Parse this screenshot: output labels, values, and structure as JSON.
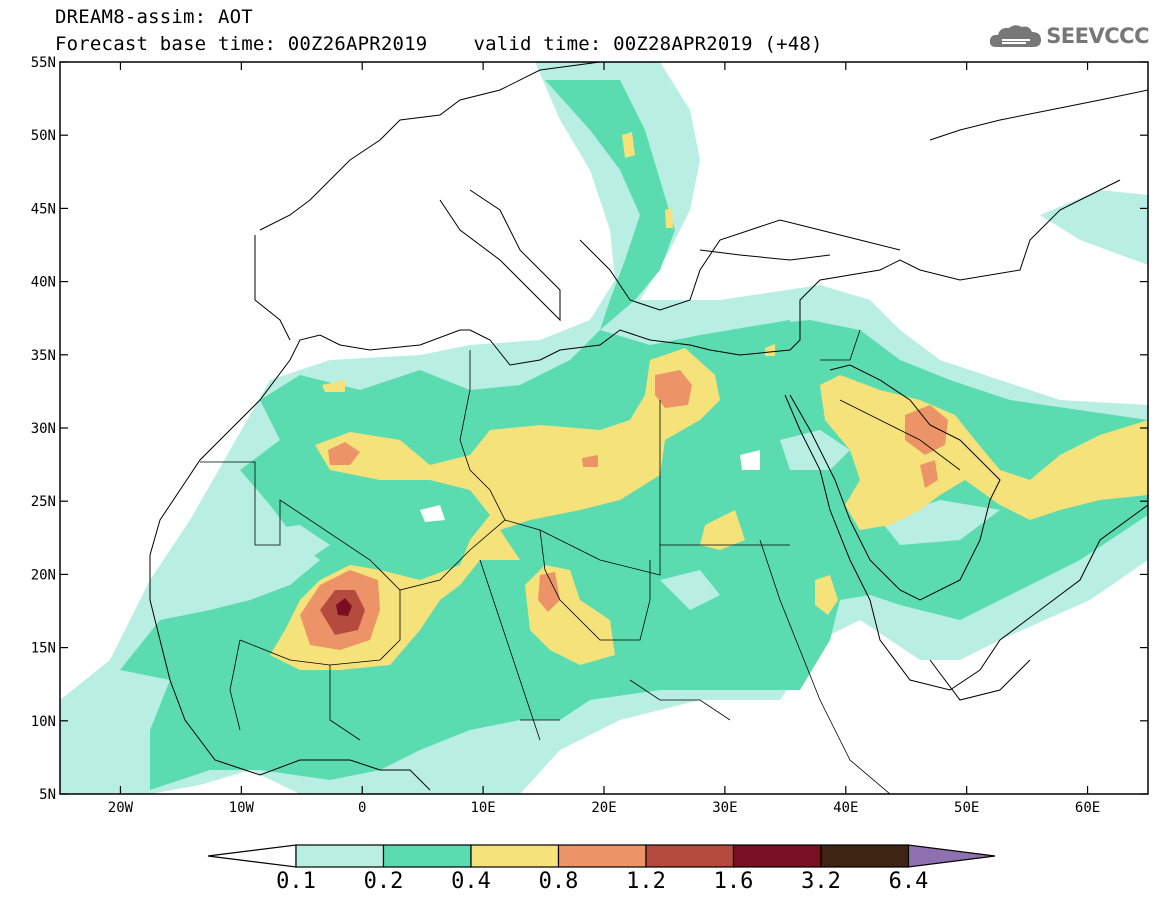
{
  "header": {
    "title": "DREAM8-assim: AOT",
    "base_time": "Forecast base time: 00Z26APR2019",
    "valid_time": "valid time: 00Z28APR2019 (+48)"
  },
  "logo": {
    "text": "SEEVCCC",
    "icon": "cloud-icon"
  },
  "map": {
    "lat_labels": [
      "55N",
      "50N",
      "45N",
      "40N",
      "35N",
      "30N",
      "25N",
      "20N",
      "15N",
      "10N",
      "5N"
    ],
    "lon_labels": [
      "20W",
      "10W",
      "0",
      "10E",
      "20E",
      "30E",
      "40E",
      "50E",
      "60E"
    ],
    "lat_range": [
      5,
      55
    ],
    "lon_range": [
      -25,
      65
    ]
  },
  "colorbar": {
    "labels": [
      "0.1",
      "0.2",
      "0.4",
      "0.8",
      "1.2",
      "1.6",
      "3.2",
      "6.4"
    ],
    "colors": [
      "#ffffff",
      "#b9efe3",
      "#5bdcb0",
      "#f6e27a",
      "#ec9468",
      "#b54a3e",
      "#780f22",
      "#3d2413",
      "#8f70b0"
    ]
  },
  "colors": {
    "aot_0_1": "#b9efe3",
    "aot_0_2": "#5bdcb0",
    "aot_0_4": "#f6e27a",
    "aot_0_8": "#ec9468",
    "aot_1_2": "#b54a3e",
    "aot_1_6": "#780f22"
  }
}
